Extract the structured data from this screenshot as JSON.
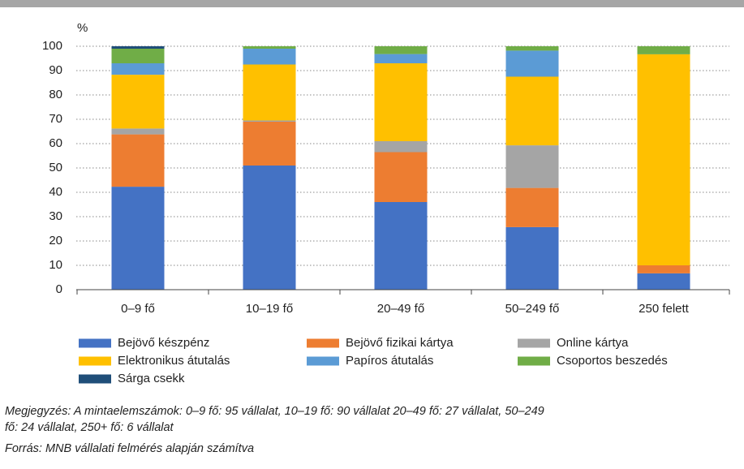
{
  "chart_data": {
    "type": "stacked_bar",
    "y_unit": "%",
    "categories": [
      "0–9 fő",
      "10–19 fő",
      "20–49 fő",
      "50–249 fő",
      "250 felett"
    ],
    "series": [
      {
        "name": "Bejövő készpénz",
        "color": "#4472c4",
        "values": [
          42.3,
          51,
          36,
          25.7,
          6.7
        ]
      },
      {
        "name": "Bejövő fizikai kártya",
        "color": "#ed7d31",
        "values": [
          21.5,
          18,
          20.5,
          16.1,
          3.3
        ]
      },
      {
        "name": "Online kártya",
        "color": "#a5a5a5",
        "values": [
          2.4,
          0.5,
          4.5,
          17.5,
          0
        ]
      },
      {
        "name": "Elektronikus átutalás",
        "color": "#ffc000",
        "values": [
          22.1,
          23,
          32,
          28.2,
          86.7
        ]
      },
      {
        "name": "Papíros átutalás",
        "color": "#5b9bd5",
        "values": [
          4.7,
          6.5,
          3.8,
          10.7,
          0
        ]
      },
      {
        "name": "Csoportos beszedés",
        "color": "#70ad47",
        "values": [
          6,
          1,
          3.2,
          1.8,
          3.3
        ]
      },
      {
        "name": "Sárga csekk",
        "color": "#1f4e79",
        "values": [
          1,
          0,
          0,
          0,
          0
        ]
      }
    ],
    "ylim": [
      0,
      100
    ],
    "yticks": [
      0,
      10,
      20,
      30,
      40,
      50,
      60,
      70,
      80,
      90,
      100
    ],
    "grid": true,
    "note": [
      "Megjegyzés: A mintaelemszámok: 0–9 fő: 95 vállalat, 10–19 fő: 90 vállalat 20–49 fő: 27 vállalat, 50–249",
      "fő: 24 vállalat, 250+ fő: 6 vállalat"
    ],
    "source": "Forrás: MNB vállalati felmérés alapján számítva"
  }
}
